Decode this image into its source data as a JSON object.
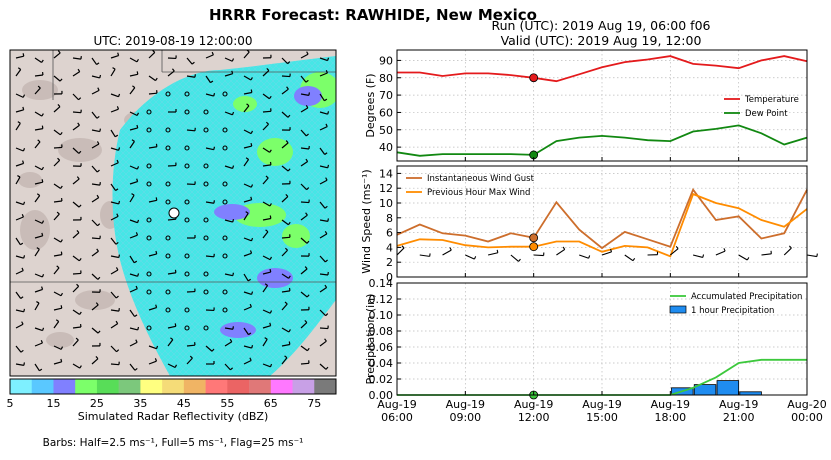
{
  "title": "HRRR Forecast: RAWHIDE, New Mexico",
  "run_line": "Run (UTC): 2019 Aug 19, 06:00 f06",
  "valid_line": "Valid (UTC): 2019 Aug 19, 12:00",
  "map": {
    "title": "UTC: 2019-08-19 12:00:00",
    "colorbar": {
      "label": "Simulated Radar Reflectivity (dBZ)",
      "ticks": [
        "5",
        "15",
        "25",
        "35",
        "45",
        "55",
        "65",
        "75"
      ],
      "colors": [
        "#7ef0ff",
        "#5ac8ff",
        "#8080ff",
        "#7cff6a",
        "#58dd58",
        "#7cc87c",
        "#ffff80",
        "#f5dc78",
        "#f0b464",
        "#ff7878",
        "#eb6464",
        "#e07878",
        "#ff78ff",
        "#c8a0e6",
        "#7a7a7a"
      ]
    },
    "barb_note": "Barbs: Half=2.5 ms⁻¹, Full=5 ms⁻¹, Flag=25 ms⁻¹"
  },
  "chart_data": [
    {
      "type": "line",
      "ylabel": "Degrees (F)",
      "ylim": [
        32,
        96
      ],
      "yticks": [
        40,
        50,
        60,
        70,
        80,
        90
      ],
      "x_hours": [
        6,
        7,
        8,
        9,
        10,
        11,
        12,
        13,
        14,
        15,
        16,
        17,
        18,
        19,
        20,
        21,
        22,
        23,
        24
      ],
      "series": [
        {
          "name": "Temperature",
          "color": "#e41a1c",
          "values": [
            83,
            83,
            81,
            82.5,
            82.5,
            81.5,
            80,
            78,
            82,
            86,
            89,
            90.5,
            92.5,
            88,
            87,
            85.5,
            90,
            92.5,
            89.5
          ]
        },
        {
          "name": "Dew Point",
          "color": "#118811",
          "values": [
            37,
            35,
            36,
            36,
            36,
            36,
            35.5,
            43.5,
            45.5,
            46.5,
            45.5,
            44,
            43.5,
            49,
            50.5,
            52.5,
            48,
            41.5,
            45.5
          ]
        }
      ],
      "marker_hour": 12,
      "legend": "right"
    },
    {
      "type": "line",
      "ylabel": "Wind Speed (ms⁻¹)",
      "ylim": [
        0,
        15
      ],
      "yticks": [
        0,
        2,
        4,
        6,
        8,
        10,
        12,
        14
      ],
      "x_hours": [
        6,
        7,
        8,
        9,
        10,
        11,
        12,
        13,
        14,
        15,
        16,
        17,
        18,
        19,
        20,
        21,
        22,
        23,
        24
      ],
      "series": [
        {
          "name": "Instantaneous Wind Gust",
          "color": "#cd6e2c",
          "values": [
            5.7,
            7.1,
            5.9,
            5.6,
            4.8,
            5.9,
            5.3,
            10.1,
            6.4,
            3.9,
            6.1,
            5.1,
            4.1,
            11.8,
            7.7,
            8.2,
            5.2,
            5.9,
            11.8
          ]
        },
        {
          "name": "Previous Hour Max Wind",
          "color": "#ff8c00",
          "values": [
            4.2,
            5.1,
            5.0,
            4.3,
            4.0,
            4.1,
            4.1,
            4.8,
            4.8,
            3.4,
            4.2,
            4.0,
            2.8,
            11.2,
            10.0,
            9.3,
            7.7,
            6.8,
            9.2
          ]
        }
      ],
      "marker_hour": 12,
      "legend": "upper-left"
    },
    {
      "type": "line+bar",
      "ylabel": "Precipitation (in)",
      "ylim": [
        0,
        0.14
      ],
      "yticks": [
        "0.00",
        "0.02",
        "0.04",
        "0.06",
        "0.08",
        "0.10",
        "0.12",
        "0.14"
      ],
      "x_hours": [
        6,
        7,
        8,
        9,
        10,
        11,
        12,
        13,
        14,
        15,
        16,
        17,
        18,
        19,
        20,
        21,
        22,
        23,
        24
      ],
      "series": [
        {
          "name": "Accumulated Precipitation",
          "color": "#3cc83c",
          "values": [
            0,
            0,
            0,
            0,
            0,
            0,
            0,
            0,
            0,
            0,
            0,
            0,
            0,
            0.009,
            0.022,
            0.04,
            0.044,
            0.044,
            0.044
          ]
        },
        {
          "name": "1 hour Precipitation",
          "color": "#1f8cf0",
          "values": [
            0,
            0,
            0,
            0,
            0,
            0,
            0,
            0,
            0,
            0,
            0,
            0,
            0,
            0.009,
            0.013,
            0.018,
            0.004,
            0,
            0
          ]
        }
      ],
      "marker_hour": 12,
      "legend": "upper-right"
    }
  ],
  "x_ticks": [
    {
      "hour": 6,
      "line1": "Aug-19",
      "line2": "06:00"
    },
    {
      "hour": 9,
      "line1": "Aug-19",
      "line2": "09:00"
    },
    {
      "hour": 12,
      "line1": "Aug-19",
      "line2": "12:00"
    },
    {
      "hour": 15,
      "line1": "Aug-19",
      "line2": "15:00"
    },
    {
      "hour": 18,
      "line1": "Aug-19",
      "line2": "18:00"
    },
    {
      "hour": 21,
      "line1": "Aug-19",
      "line2": "21:00"
    },
    {
      "hour": 24,
      "line1": "Aug-20",
      "line2": "00:00"
    }
  ]
}
